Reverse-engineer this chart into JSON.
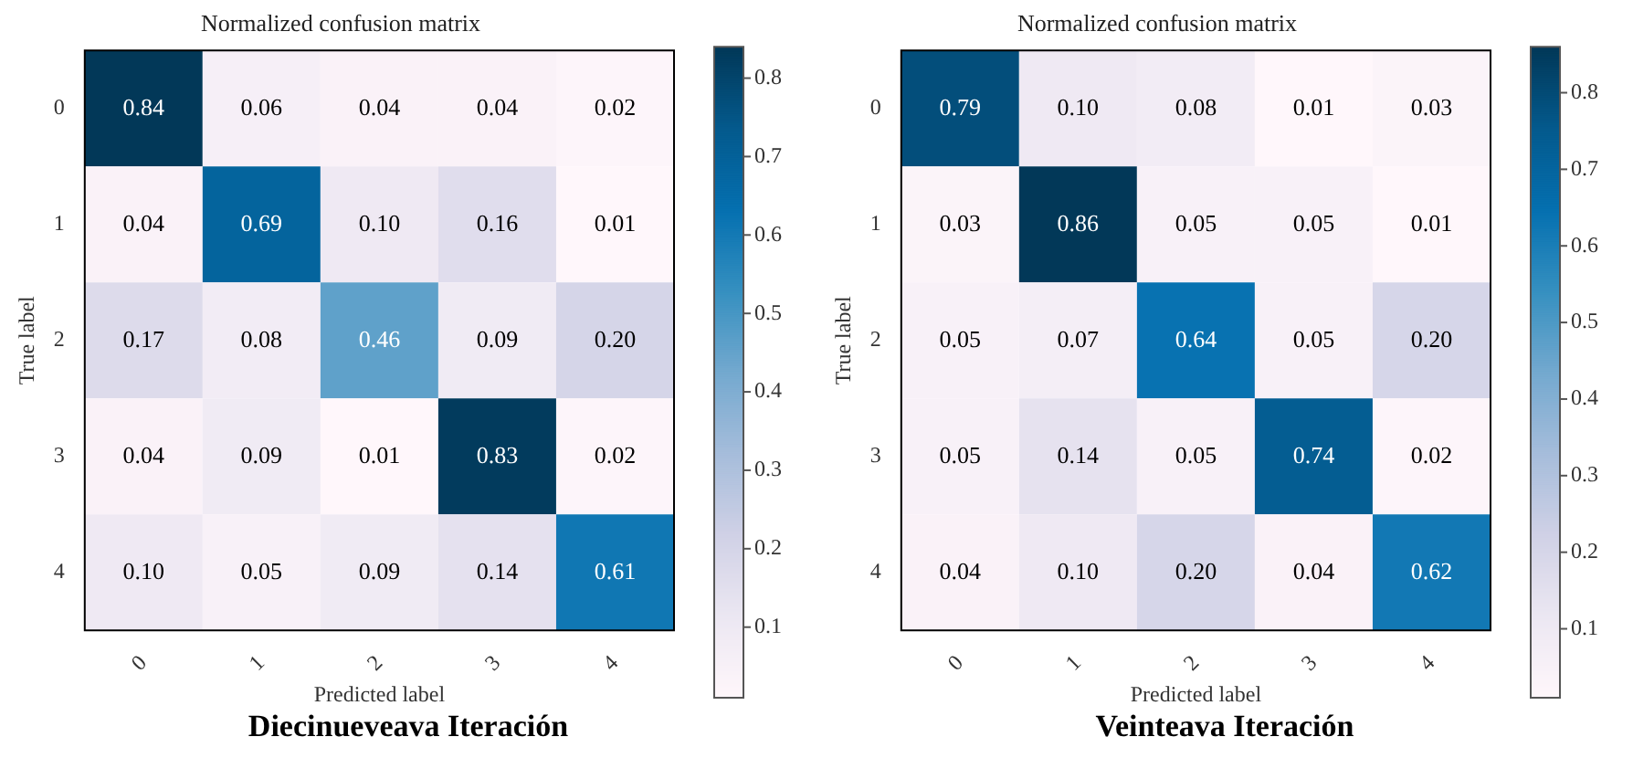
{
  "chart_data": [
    {
      "type": "heatmap",
      "title": "Normalized confusion matrix",
      "subtitle": "Diecinueveava Iteración",
      "xlabel": "Predicted label",
      "ylabel": "True label",
      "categories": [
        "0",
        "1",
        "2",
        "3",
        "4"
      ],
      "y_categories": [
        "0",
        "1",
        "2",
        "3",
        "4"
      ],
      "cells": [
        [
          0.84,
          0.06,
          0.04,
          0.04,
          0.02
        ],
        [
          0.04,
          0.69,
          0.1,
          0.16,
          0.01
        ],
        [
          0.17,
          0.08,
          0.46,
          0.09,
          0.2
        ],
        [
          0.04,
          0.09,
          0.01,
          0.83,
          0.02
        ],
        [
          0.1,
          0.05,
          0.09,
          0.14,
          0.61
        ]
      ],
      "cell_labels": [
        [
          "0.84",
          "0.06",
          "0.04",
          "0.04",
          "0.02"
        ],
        [
          "0.04",
          "0.69",
          "0.10",
          "0.16",
          "0.01"
        ],
        [
          "0.17",
          "0.08",
          "0.46",
          "0.09",
          "0.20"
        ],
        [
          "0.04",
          "0.09",
          "0.01",
          "0.83",
          "0.02"
        ],
        [
          "0.10",
          "0.05",
          "0.09",
          "0.14",
          "0.61"
        ]
      ],
      "clim": [
        0.01,
        0.84
      ],
      "cticks": [
        0.1,
        0.2,
        0.3,
        0.4,
        0.5,
        0.6,
        0.7,
        0.8
      ]
    },
    {
      "type": "heatmap",
      "title": "Normalized confusion matrix",
      "subtitle": "Veinteava Iteración",
      "xlabel": "Predicted label",
      "ylabel": "True label",
      "categories": [
        "0",
        "1",
        "2",
        "3",
        "4"
      ],
      "y_categories": [
        "0",
        "1",
        "2",
        "3",
        "4"
      ],
      "cells": [
        [
          0.79,
          0.1,
          0.08,
          0.01,
          0.03
        ],
        [
          0.03,
          0.86,
          0.05,
          0.05,
          0.01
        ],
        [
          0.05,
          0.07,
          0.64,
          0.05,
          0.2
        ],
        [
          0.05,
          0.14,
          0.05,
          0.74,
          0.02
        ],
        [
          0.04,
          0.1,
          0.2,
          0.04,
          0.62
        ]
      ],
      "cell_labels": [
        [
          "0.79",
          "0.10",
          "0.08",
          "0.01",
          "0.03"
        ],
        [
          "0.03",
          "0.86",
          "0.05",
          "0.05",
          "0.01"
        ],
        [
          "0.05",
          "0.07",
          "0.64",
          "0.05",
          "0.20"
        ],
        [
          "0.05",
          "0.14",
          "0.05",
          "0.74",
          "0.02"
        ],
        [
          "0.04",
          "0.10",
          "0.20",
          "0.04",
          "0.62"
        ]
      ],
      "clim": [
        0.01,
        0.86
      ],
      "cticks": [
        0.1,
        0.2,
        0.3,
        0.4,
        0.5,
        0.6,
        0.7,
        0.8
      ]
    }
  ]
}
